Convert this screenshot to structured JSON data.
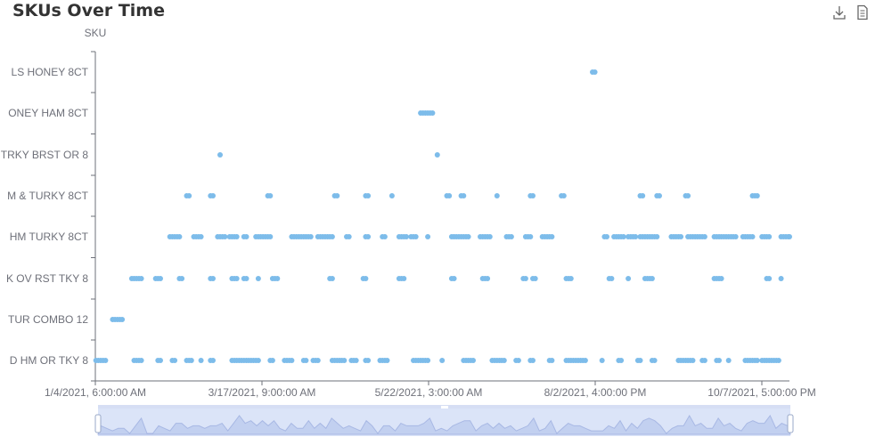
{
  "header": {
    "title": "SKUs Over Time",
    "download_icon": "download-icon",
    "data_view_icon": "document-icon"
  },
  "colors": {
    "point": "#7dbcea",
    "axis": "#6e7079",
    "slider_fill": "#dbe4f8",
    "slider_line": "#a8b8e4"
  },
  "chart_data": {
    "type": "scatter",
    "title": "SKUs Over Time",
    "ylabel": "SKU",
    "xlabel": "",
    "x_ticks": [
      "1/4/2021, 6:00:00 AM",
      "3/17/2021, 9:00:00 AM",
      "5/22/2021, 3:00:00 AM",
      "8/2/2021, 4:00:00 PM",
      "10/7/2021, 5:00:00 PM"
    ],
    "xlim": [
      "2021-01-04T06:00",
      "2021-10-22T00:00"
    ],
    "categories": [
      "LS HONEY 8CT",
      "ONEY HAM 8CT",
      "TRKY BRST OR 8",
      "M & TURKY 8CT",
      "HM TURKY 8CT",
      "K OV RST TKY 8",
      "TUR COMBO 12",
      "D HM OR TKY 8"
    ],
    "category_note": "SKU labels are truncated on the left edge in the original",
    "series": [
      {
        "points": [
          {
            "sku": "LS HONEY 8CT",
            "x": [
              "2021-07-31",
              "2021-08-01"
            ]
          },
          {
            "sku": "ONEY HAM 8CT",
            "x": [
              "2021-05-20",
              "2021-05-21",
              "2021-05-22",
              "2021-05-23",
              "2021-05-24",
              "2021-05-25"
            ]
          },
          {
            "sku": "TRKY BRST OR 8",
            "x": [
              "2021-02-25",
              "2021-05-27"
            ]
          },
          {
            "sku": "M & TURKY 8CT",
            "x": [
              "2021-02-11",
              "2021-02-12",
              "2021-02-21",
              "2021-02-22",
              "2021-03-17",
              "2021-03-18",
              "2021-04-14",
              "2021-04-15",
              "2021-04-27",
              "2021-04-28",
              "2021-05-08",
              "2021-05-31",
              "2021-06-01",
              "2021-06-06",
              "2021-06-07",
              "2021-06-21",
              "2021-07-05",
              "2021-07-06",
              "2021-07-18",
              "2021-07-19",
              "2021-08-20",
              "2021-08-21",
              "2021-08-27",
              "2021-08-28",
              "2021-09-08",
              "2021-09-09",
              "2021-10-06",
              "2021-10-07",
              "2021-10-08"
            ]
          },
          {
            "sku": "HM TURKY 8CT",
            "x": [
              "2021-02-04",
              "2021-02-05",
              "2021-02-06",
              "2021-02-07",
              "2021-02-08",
              "2021-02-14",
              "2021-02-15",
              "2021-02-16",
              "2021-02-17",
              "2021-02-24",
              "2021-02-25",
              "2021-02-26",
              "2021-02-27",
              "2021-03-01",
              "2021-03-02",
              "2021-03-03",
              "2021-03-04",
              "2021-03-07",
              "2021-03-08",
              "2021-03-12",
              "2021-03-13",
              "2021-03-14",
              "2021-03-15",
              "2021-03-16",
              "2021-03-17",
              "2021-03-18",
              "2021-03-27",
              "2021-03-28",
              "2021-03-29",
              "2021-03-30",
              "2021-03-31",
              "2021-04-01",
              "2021-04-02",
              "2021-04-03",
              "2021-04-04",
              "2021-04-07",
              "2021-04-08",
              "2021-04-09",
              "2021-04-10",
              "2021-04-11",
              "2021-04-12",
              "2021-04-13",
              "2021-04-19",
              "2021-04-20",
              "2021-04-27",
              "2021-04-28",
              "2021-05-04",
              "2021-05-05",
              "2021-05-11",
              "2021-05-12",
              "2021-05-13",
              "2021-05-14",
              "2021-05-16",
              "2021-05-17",
              "2021-05-18",
              "2021-05-23",
              "2021-06-02",
              "2021-06-03",
              "2021-06-04",
              "2021-06-05",
              "2021-06-06",
              "2021-06-07",
              "2021-06-08",
              "2021-06-09",
              "2021-06-14",
              "2021-06-15",
              "2021-06-16",
              "2021-06-17",
              "2021-06-18",
              "2021-06-25",
              "2021-06-26",
              "2021-06-27",
              "2021-07-03",
              "2021-07-04",
              "2021-07-05",
              "2021-07-10",
              "2021-07-11",
              "2021-07-12",
              "2021-07-13",
              "2021-07-14",
              "2021-08-05",
              "2021-08-06",
              "2021-08-09",
              "2021-08-10",
              "2021-08-11",
              "2021-08-12",
              "2021-08-13",
              "2021-08-15",
              "2021-08-16",
              "2021-08-17",
              "2021-08-18",
              "2021-08-20",
              "2021-08-21",
              "2021-08-22",
              "2021-08-23",
              "2021-08-24",
              "2021-08-25",
              "2021-08-26",
              "2021-08-27",
              "2021-09-02",
              "2021-09-03",
              "2021-09-04",
              "2021-09-05",
              "2021-09-06",
              "2021-09-09",
              "2021-09-10",
              "2021-09-11",
              "2021-09-12",
              "2021-09-13",
              "2021-09-14",
              "2021-09-15",
              "2021-09-16",
              "2021-09-20",
              "2021-09-21",
              "2021-09-22",
              "2021-09-23",
              "2021-09-24",
              "2021-09-25",
              "2021-09-26",
              "2021-09-27",
              "2021-09-28",
              "2021-09-29",
              "2021-10-02",
              "2021-10-03",
              "2021-10-04",
              "2021-10-05",
              "2021-10-06",
              "2021-10-10",
              "2021-10-11",
              "2021-10-12",
              "2021-10-13",
              "2021-10-18",
              "2021-10-19",
              "2021-10-20",
              "2021-10-21",
              "2021-10-22"
            ]
          },
          {
            "sku": "K OV RST TKY 8",
            "x": [
              "2021-01-19",
              "2021-01-20",
              "2021-01-21",
              "2021-01-22",
              "2021-01-23",
              "2021-01-29",
              "2021-01-30",
              "2021-01-31",
              "2021-02-08",
              "2021-02-09",
              "2021-02-21",
              "2021-02-22",
              "2021-03-02",
              "2021-03-03",
              "2021-03-04",
              "2021-03-07",
              "2021-03-08",
              "2021-03-13",
              "2021-03-19",
              "2021-03-20",
              "2021-03-21",
              "2021-04-12",
              "2021-04-13",
              "2021-04-26",
              "2021-04-27",
              "2021-05-11",
              "2021-05-12",
              "2021-05-13",
              "2021-06-02",
              "2021-06-03",
              "2021-06-15",
              "2021-06-16",
              "2021-06-17",
              "2021-07-02",
              "2021-07-03",
              "2021-07-06",
              "2021-07-07",
              "2021-07-20",
              "2021-07-21",
              "2021-07-22",
              "2021-08-07",
              "2021-08-08",
              "2021-08-15",
              "2021-08-22",
              "2021-08-23",
              "2021-08-24",
              "2021-08-25",
              "2021-09-20",
              "2021-09-21",
              "2021-09-22",
              "2021-09-23",
              "2021-10-12",
              "2021-10-13",
              "2021-10-18"
            ]
          },
          {
            "sku": "TUR COMBO 12",
            "x": [
              "2021-01-11",
              "2021-01-12",
              "2021-01-13",
              "2021-01-14",
              "2021-01-15"
            ]
          },
          {
            "sku": "D HM OR TKY 8",
            "x": [
              "2021-01-04",
              "2021-01-05",
              "2021-01-06",
              "2021-01-07",
              "2021-01-08",
              "2021-01-20",
              "2021-01-21",
              "2021-01-22",
              "2021-01-23",
              "2021-01-30",
              "2021-01-31",
              "2021-02-05",
              "2021-02-06",
              "2021-02-11",
              "2021-02-12",
              "2021-02-13",
              "2021-02-17",
              "2021-02-21",
              "2021-02-22",
              "2021-03-02",
              "2021-03-03",
              "2021-03-04",
              "2021-03-05",
              "2021-03-06",
              "2021-03-07",
              "2021-03-08",
              "2021-03-09",
              "2021-03-10",
              "2021-03-11",
              "2021-03-12",
              "2021-03-13",
              "2021-03-18",
              "2021-03-19",
              "2021-03-24",
              "2021-03-25",
              "2021-03-26",
              "2021-03-27",
              "2021-04-01",
              "2021-04-02",
              "2021-04-05",
              "2021-04-06",
              "2021-04-07",
              "2021-04-13",
              "2021-04-14",
              "2021-04-15",
              "2021-04-16",
              "2021-04-17",
              "2021-04-18",
              "2021-04-21",
              "2021-04-22",
              "2021-04-23",
              "2021-04-27",
              "2021-04-28",
              "2021-05-03",
              "2021-05-04",
              "2021-05-05",
              "2021-05-06",
              "2021-05-17",
              "2021-05-18",
              "2021-05-19",
              "2021-05-20",
              "2021-05-21",
              "2021-05-22",
              "2021-05-23",
              "2021-05-29",
              "2021-06-07",
              "2021-06-08",
              "2021-06-09",
              "2021-06-10",
              "2021-06-11",
              "2021-06-19",
              "2021-06-20",
              "2021-06-21",
              "2021-06-22",
              "2021-06-23",
              "2021-06-24",
              "2021-06-29",
              "2021-06-30",
              "2021-07-05",
              "2021-07-06",
              "2021-07-13",
              "2021-07-14",
              "2021-07-20",
              "2021-07-21",
              "2021-07-22",
              "2021-07-23",
              "2021-07-24",
              "2021-07-25",
              "2021-07-26",
              "2021-07-27",
              "2021-07-28",
              "2021-08-04",
              "2021-08-11",
              "2021-08-12",
              "2021-08-19",
              "2021-08-20",
              "2021-08-25",
              "2021-08-26",
              "2021-09-05",
              "2021-09-06",
              "2021-09-07",
              "2021-09-08",
              "2021-09-09",
              "2021-09-10",
              "2021-09-11",
              "2021-09-15",
              "2021-09-16",
              "2021-09-21",
              "2021-09-22",
              "2021-09-26",
              "2021-10-03",
              "2021-10-04",
              "2021-10-05",
              "2021-10-06",
              "2021-10-07",
              "2021-10-08",
              "2021-10-10",
              "2021-10-11",
              "2021-10-12",
              "2021-10-13",
              "2021-10-14",
              "2021-10-15",
              "2021-10-16",
              "2021-10-17"
            ]
          }
        ]
      }
    ],
    "grid": false,
    "legend": "none",
    "data_zoom_slider": true
  }
}
